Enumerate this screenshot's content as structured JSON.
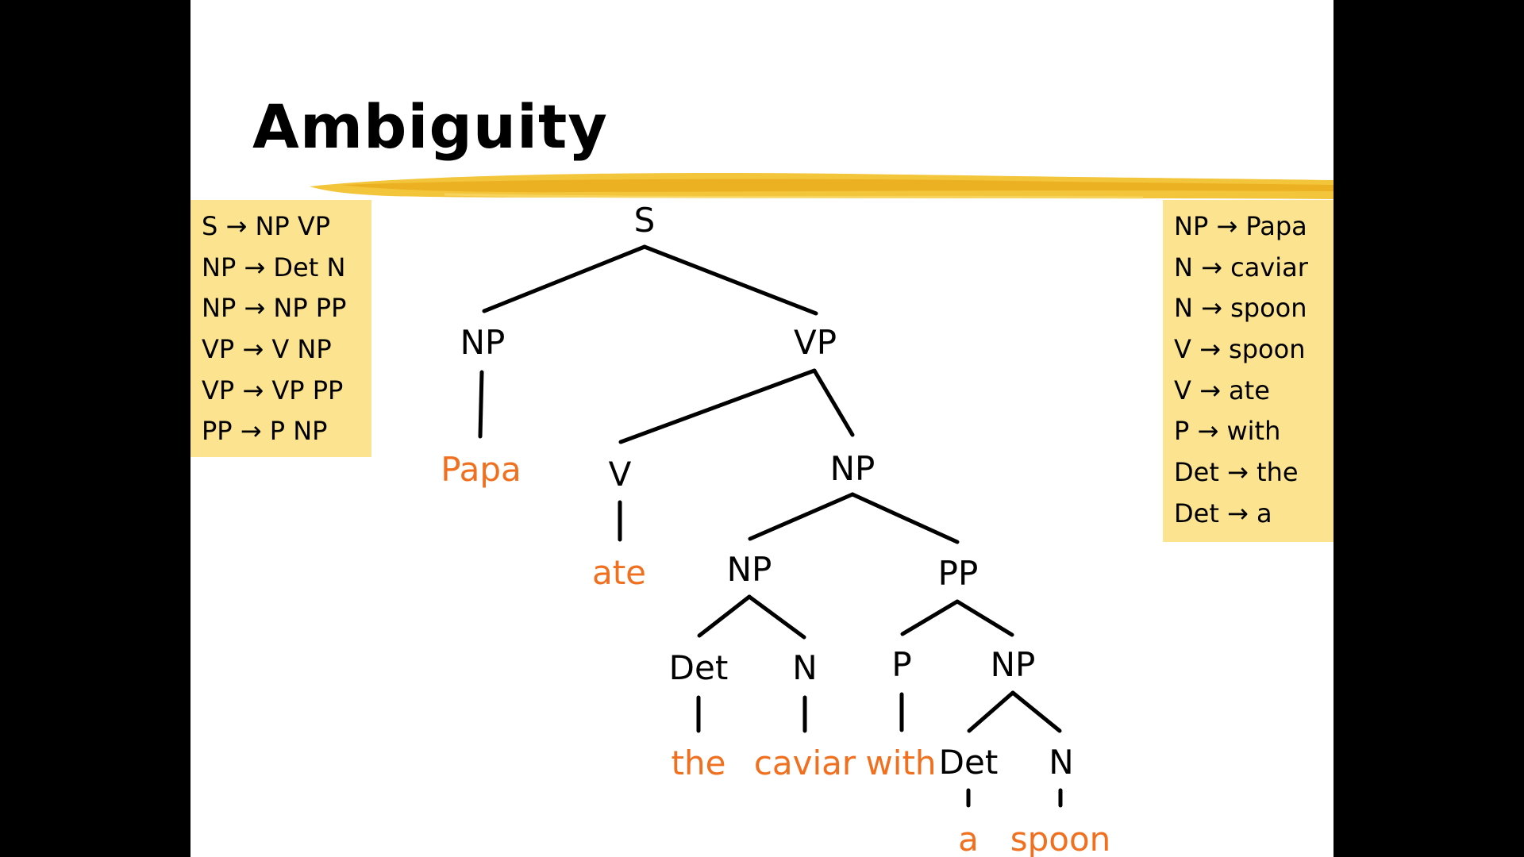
{
  "slide": {
    "title": "Ambiguity"
  },
  "grammar_left": [
    "S → NP VP",
    "NP → Det N",
    "NP → NP PP",
    "VP → V NP",
    "VP → VP PP",
    "PP → P NP"
  ],
  "grammar_right": [
    "NP → Papa",
    "N → caviar",
    "N → spoon",
    "V → spoon",
    "V → ate",
    "P → with",
    "Det → the",
    "Det → a"
  ],
  "tree": {
    "nodes": [
      {
        "id": "s",
        "label": "S",
        "kind": "category"
      },
      {
        "id": "np1",
        "label": "NP",
        "kind": "category"
      },
      {
        "id": "vp",
        "label": "VP",
        "kind": "category"
      },
      {
        "id": "papa",
        "label": "Papa",
        "kind": "word"
      },
      {
        "id": "v",
        "label": "V",
        "kind": "category"
      },
      {
        "id": "np2",
        "label": "NP",
        "kind": "category"
      },
      {
        "id": "ate",
        "label": "ate",
        "kind": "word"
      },
      {
        "id": "np3",
        "label": "NP",
        "kind": "category"
      },
      {
        "id": "pp",
        "label": "PP",
        "kind": "category"
      },
      {
        "id": "det1",
        "label": "Det",
        "kind": "category"
      },
      {
        "id": "n1",
        "label": "N",
        "kind": "category"
      },
      {
        "id": "p",
        "label": "P",
        "kind": "category"
      },
      {
        "id": "np4",
        "label": "NP",
        "kind": "category"
      },
      {
        "id": "the",
        "label": "the",
        "kind": "word"
      },
      {
        "id": "caviar",
        "label": "caviar",
        "kind": "word"
      },
      {
        "id": "with",
        "label": "with",
        "kind": "word"
      },
      {
        "id": "det2",
        "label": "Det",
        "kind": "category"
      },
      {
        "id": "n2",
        "label": "N",
        "kind": "category"
      },
      {
        "id": "a",
        "label": "a",
        "kind": "word"
      },
      {
        "id": "spoon",
        "label": "spoon",
        "kind": "word"
      }
    ],
    "edges": [
      [
        "s",
        "np1"
      ],
      [
        "s",
        "vp"
      ],
      [
        "np1",
        "papa"
      ],
      [
        "vp",
        "v"
      ],
      [
        "vp",
        "np2"
      ],
      [
        "v",
        "ate"
      ],
      [
        "np2",
        "np3"
      ],
      [
        "np2",
        "pp"
      ],
      [
        "np3",
        "det1"
      ],
      [
        "np3",
        "n1"
      ],
      [
        "pp",
        "p"
      ],
      [
        "pp",
        "np4"
      ],
      [
        "det1",
        "the"
      ],
      [
        "n1",
        "caviar"
      ],
      [
        "p",
        "with"
      ],
      [
        "np4",
        "det2"
      ],
      [
        "np4",
        "n2"
      ],
      [
        "det2",
        "a"
      ],
      [
        "n2",
        "spoon"
      ]
    ]
  },
  "colors": {
    "category": "#000000",
    "word": "#f07020",
    "rule_box": "#fbe38f",
    "brush": "#f2c230"
  }
}
